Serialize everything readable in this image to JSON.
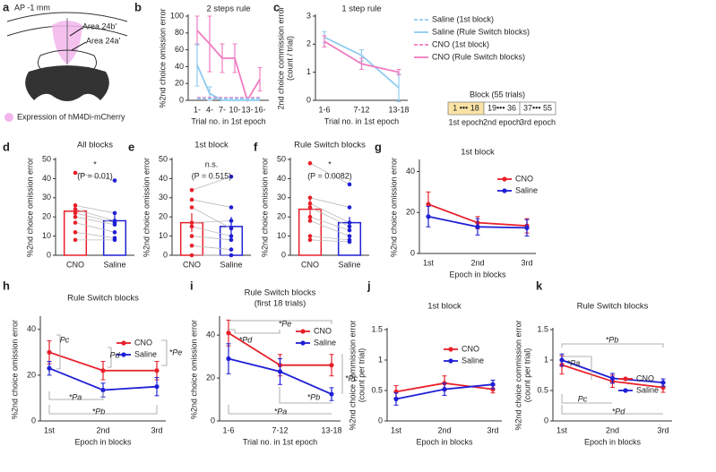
{
  "figure_a": {
    "panel": "a",
    "heading": "AP -1 mm",
    "labels": [
      "Area 24b'",
      "Area 24a'"
    ],
    "legend": "Expression of hM4Di-mCherry"
  },
  "chart_data": [
    {
      "type": "line",
      "panel": "b",
      "title": "2 steps rule",
      "ylabel": "%2nd choice omission error",
      "xlabel": "Trial no. in 1st epoch",
      "categories": [
        "1-",
        "4-",
        "7-",
        "10-",
        "13-",
        "16-"
      ],
      "ylim": [
        0,
        100
      ],
      "yticks": [
        0,
        20,
        40,
        60,
        80,
        100
      ],
      "markers": false,
      "series": [
        {
          "color": "#f07cc0",
          "dashed": false,
          "values": [
            83,
            67,
            50,
            50,
            0,
            25
          ],
          "errors": [
            17,
            33,
            17,
            17,
            0,
            14
          ]
        },
        {
          "color": "#8ecbf0",
          "dashed": false,
          "values": [
            42,
            8,
            0,
            0,
            0,
            0
          ],
          "errors": [
            25,
            8,
            0,
            0,
            0,
            0
          ]
        },
        {
          "color": "#f07cc0",
          "dashed": true,
          "values": [
            3,
            3,
            3,
            3,
            3,
            3
          ],
          "errors": [
            0,
            0,
            0,
            0,
            0,
            0
          ]
        },
        {
          "color": "#8ecbf0",
          "dashed": true,
          "values": [
            2,
            2,
            2,
            2,
            2,
            2
          ],
          "errors": [
            0,
            0,
            0,
            0,
            0,
            0
          ]
        }
      ]
    },
    {
      "type": "line",
      "panel": "c",
      "title": "1 step rule",
      "ylabel": [
        "2nd choice commission error",
        "(count / trial)"
      ],
      "xlabel": "Trial no. in 1st epoch",
      "categories": [
        "1-6",
        "7-12",
        "13-18"
      ],
      "ylim": [
        0,
        3
      ],
      "yticks": [
        0,
        1,
        2,
        3
      ],
      "markers": false,
      "series": [
        {
          "name": "Saline (1st block)",
          "color": "#8ecbf0",
          "dashed": true,
          "values": [
            null,
            null,
            null
          ],
          "errors": [
            null,
            null,
            null
          ]
        },
        {
          "name": "Saline (Rule Switch blocks)",
          "color": "#8ecbf0",
          "dashed": false,
          "values": [
            2.25,
            1.6,
            0.45
          ],
          "errors": [
            0.2,
            0.2,
            0.5
          ]
        },
        {
          "name": "CNO (1st block)",
          "color": "#f07cc0",
          "dashed": true,
          "values": [
            null,
            null,
            null
          ],
          "errors": [
            null,
            null,
            null
          ]
        },
        {
          "name": "CNO (Rule Switch blocks)",
          "color": "#f07cc0",
          "dashed": false,
          "values": [
            2.1,
            1.3,
            1.0
          ],
          "errors": [
            0.2,
            0.2,
            0.1
          ]
        }
      ],
      "block_diagram": {
        "title": "Block (55 trials)",
        "blocks": [
          "1 ••• 18",
          "19••• 36",
          "37••• 55"
        ],
        "epochs": [
          "1st epoch",
          "2nd epoch",
          "3rd epoch"
        ]
      }
    },
    {
      "type": "bar",
      "panel": "d",
      "title": "All blocks",
      "significance": "*",
      "p_label": "(P = 0.01)",
      "ylabel": "%2nd choice omission error",
      "categories": [
        "CNO",
        "Saline"
      ],
      "colors": [
        "#e8202a",
        "#1f1fd6"
      ],
      "values": [
        23,
        18
      ],
      "errors": [
        4,
        3
      ],
      "individual": [
        [
          43,
          26,
          24,
          22,
          20,
          17,
          12,
          8
        ],
        [
          39,
          22,
          18,
          17,
          16,
          12,
          9,
          8
        ]
      ],
      "ylim": [
        0,
        50
      ],
      "yticks": [
        0,
        10,
        20,
        30,
        40,
        50
      ]
    },
    {
      "type": "bar",
      "panel": "e",
      "title": "1st block",
      "significance": "n.s.",
      "p_label": "(P = 0.515)",
      "ylabel": "%2nd choice omission error",
      "categories": [
        "CNO",
        "Saline"
      ],
      "colors": [
        "#e8202a",
        "#1f1fd6"
      ],
      "values": [
        17,
        15
      ],
      "errors": [
        5,
        5
      ],
      "individual": [
        [
          34,
          29,
          25,
          17,
          15,
          10,
          5,
          0
        ],
        [
          41,
          25,
          14,
          18,
          10,
          8,
          3,
          0
        ]
      ],
      "ylim": [
        0,
        50
      ],
      "yticks": [
        0,
        10,
        20,
        30,
        40,
        50
      ]
    },
    {
      "type": "bar",
      "panel": "f",
      "title": "Rule Switch blocks",
      "significance": "*",
      "p_label": "(P = 0.0082)",
      "ylabel": "%2nd choice omission error",
      "categories": [
        "CNO",
        "Saline"
      ],
      "colors": [
        "#e8202a",
        "#1f1fd6"
      ],
      "values": [
        24,
        17
      ],
      "errors": [
        5,
        3
      ],
      "individual": [
        [
          48,
          30,
          27,
          25,
          20,
          18,
          10,
          8
        ],
        [
          37,
          25,
          17,
          15,
          13,
          10,
          8,
          7
        ]
      ],
      "ylim": [
        0,
        50
      ],
      "yticks": [
        0,
        10,
        20,
        30,
        40,
        50
      ]
    },
    {
      "type": "line",
      "panel": "g",
      "title": "1st block",
      "ylabel": "%2nd choice omission error",
      "xlabel": "Epoch in blocks",
      "categories": [
        "1st",
        "2nd",
        "3rd"
      ],
      "ylim": [
        0,
        45
      ],
      "yticks": [
        0,
        20,
        40
      ],
      "markers": true,
      "series": [
        {
          "name": "CNO",
          "color": "#e8202a",
          "values": [
            24,
            15,
            13.5
          ],
          "errors": [
            6,
            3,
            3.5
          ]
        },
        {
          "name": "Saline",
          "color": "#1f1fd6",
          "values": [
            18,
            13,
            12.5
          ],
          "errors": [
            5,
            4,
            4
          ]
        }
      ]
    },
    {
      "type": "line",
      "panel": "h",
      "title": "Rule Switch blocks",
      "ylabel": "%2nd choice omission error",
      "xlabel": "Epoch in blocks",
      "categories": [
        "1st",
        "2nd",
        "3rd"
      ],
      "ylim": [
        0,
        45
      ],
      "yticks": [
        0,
        20,
        40
      ],
      "markers": true,
      "series": [
        {
          "name": "CNO",
          "color": "#e8202a",
          "values": [
            30,
            22,
            22
          ],
          "errors": [
            5,
            4,
            4
          ]
        },
        {
          "name": "Saline",
          "color": "#1f1fd6",
          "values": [
            23,
            13.5,
            15
          ],
          "errors": [
            3,
            3,
            4
          ]
        }
      ],
      "annotations": [
        "Pc",
        "Pd",
        "*Pa",
        "*Pb",
        "*Pe"
      ]
    },
    {
      "type": "line",
      "panel": "i",
      "title": "Rule Switch blocks",
      "subtitle": "(first 18 trials)",
      "ylabel": "%2nd choice omission error",
      "xlabel": "Trial no. in 1st epoch",
      "categories": [
        "1-6",
        "7-12",
        "13-18"
      ],
      "ylim": [
        0,
        48
      ],
      "yticks": [
        0,
        20,
        40
      ],
      "markers": true,
      "series": [
        {
          "name": "CNO",
          "color": "#e8202a",
          "values": [
            41,
            26,
            26
          ],
          "errors": [
            6,
            5,
            5
          ]
        },
        {
          "name": "Saline",
          "color": "#1f1fd6",
          "values": [
            29,
            23,
            12.5
          ],
          "errors": [
            7,
            6,
            3
          ]
        }
      ],
      "annotations": [
        "*Pd",
        "*Pe",
        "*Pc",
        "*Pb",
        "*Pa"
      ]
    },
    {
      "type": "line",
      "panel": "j",
      "title": "1st block",
      "ylabel": [
        "%2nd choice commission error",
        "(count per trial)"
      ],
      "xlabel": "Epoch in blocks",
      "categories": [
        "1st",
        "2nd",
        "3rd"
      ],
      "ylim": [
        0,
        1.5
      ],
      "yticks": [
        0,
        0.5,
        1,
        1.5
      ],
      "markers": true,
      "series": [
        {
          "name": "CNO",
          "color": "#e8202a",
          "values": [
            0.48,
            0.62,
            0.52
          ],
          "errors": [
            0.1,
            0.12,
            0.06
          ]
        },
        {
          "name": "Saline",
          "color": "#1f1fd6",
          "values": [
            0.36,
            0.52,
            0.6
          ],
          "errors": [
            0.1,
            0.1,
            0.07
          ]
        }
      ]
    },
    {
      "type": "line",
      "panel": "k",
      "title": "Rule Switch blocks",
      "ylabel": [
        "%2nd choice commission error",
        "(count per trial)"
      ],
      "xlabel": "Epoch in blocks",
      "categories": [
        "1st",
        "2nd",
        "3rd"
      ],
      "ylim": [
        0,
        1.5
      ],
      "yticks": [
        0,
        0.5,
        1,
        1.5
      ],
      "markers": true,
      "series": [
        {
          "name": "CNO",
          "color": "#e8202a",
          "values": [
            0.92,
            0.65,
            0.55
          ],
          "errors": [
            0.15,
            0.1,
            0.08
          ]
        },
        {
          "name": "Saline",
          "color": "#1f1fd6",
          "values": [
            1.0,
            0.7,
            0.63
          ],
          "errors": [
            0.1,
            0.08,
            0.06
          ]
        }
      ],
      "annotations": [
        "*Pb",
        "*Pa",
        "Pc",
        "*Pd"
      ]
    }
  ]
}
